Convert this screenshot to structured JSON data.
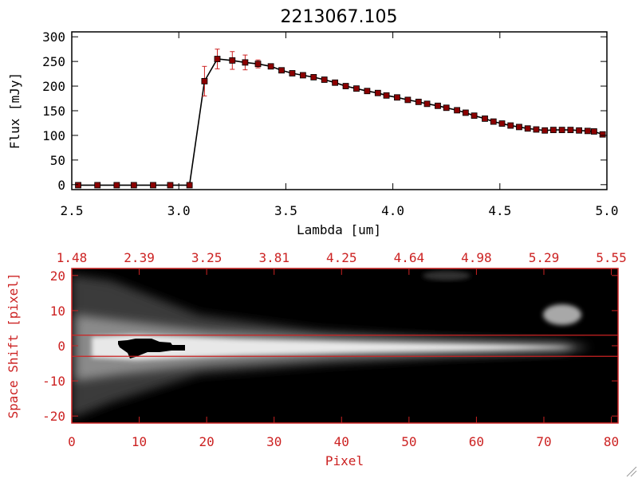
{
  "chart_data": [
    {
      "type": "line",
      "title": "2213067.105",
      "xlabel": "Lambda [um]",
      "ylabel": "Flux [mJy]",
      "xlim": [
        2.5,
        5.0
      ],
      "ylim": [
        -10,
        310
      ],
      "xticks": [
        "2.5",
        "3.0",
        "3.5",
        "4.0",
        "4.5",
        "5.0"
      ],
      "yticks": [
        "0",
        "50",
        "100",
        "150",
        "200",
        "250",
        "300"
      ],
      "grid": false,
      "colors": {
        "line": "#000000",
        "marker": "#8b0000",
        "errorbar": "#cc2222"
      },
      "series": [
        {
          "x": [
            2.53,
            2.62,
            2.71,
            2.79,
            2.88,
            2.96,
            3.05,
            3.12,
            3.18,
            3.25,
            3.31,
            3.37,
            3.43,
            3.48,
            3.53,
            3.58,
            3.63,
            3.68,
            3.73,
            3.78,
            3.83,
            3.88,
            3.93,
            3.97,
            4.02,
            4.07,
            4.12,
            4.16,
            4.21,
            4.25,
            4.3,
            4.34,
            4.38,
            4.43,
            4.47,
            4.51,
            4.55,
            4.59,
            4.63,
            4.67,
            4.71,
            4.75,
            4.79,
            4.83,
            4.87,
            4.91,
            4.94,
            4.98
          ],
          "y": [
            -1,
            -1,
            -1,
            -1,
            -1,
            -1,
            -1,
            210,
            255,
            252,
            248,
            245,
            240,
            232,
            226,
            222,
            218,
            213,
            207,
            200,
            195,
            190,
            186,
            181,
            177,
            172,
            168,
            164,
            160,
            156,
            151,
            146,
            140,
            134,
            128,
            124,
            120,
            117,
            114,
            112,
            110,
            111,
            111,
            111,
            110,
            109,
            108,
            102
          ],
          "errors": [
            0,
            0,
            0,
            0,
            0,
            0,
            0,
            30,
            20,
            18,
            15,
            8,
            5,
            4,
            4,
            4,
            4,
            3,
            3,
            3,
            3,
            3,
            3,
            3,
            3,
            3,
            3,
            3,
            3,
            3,
            3,
            3,
            3,
            3,
            3,
            3,
            3,
            3,
            3,
            3,
            3,
            3,
            3,
            3,
            3,
            3,
            3,
            3
          ]
        }
      ]
    },
    {
      "type": "heatmap",
      "xlabel": "Pixel",
      "ylabel": "Space Shift [pixel]",
      "xlim": [
        0,
        81
      ],
      "ylim": [
        -22,
        22
      ],
      "xticks": [
        "0",
        "10",
        "20",
        "30",
        "40",
        "50",
        "60",
        "70",
        "80"
      ],
      "yticks": [
        "-20",
        "-10",
        "0",
        "10",
        "20"
      ],
      "top_ticks": [
        "1.48",
        "2.39",
        "3.25",
        "3.81",
        "4.25",
        "4.64",
        "4.98",
        "5.29",
        "5.55"
      ],
      "reference_lines_y": [
        3,
        -3
      ],
      "colors": {
        "axis": "#cc2222",
        "lines": "#cc2222",
        "background": "#000000"
      }
    }
  ]
}
